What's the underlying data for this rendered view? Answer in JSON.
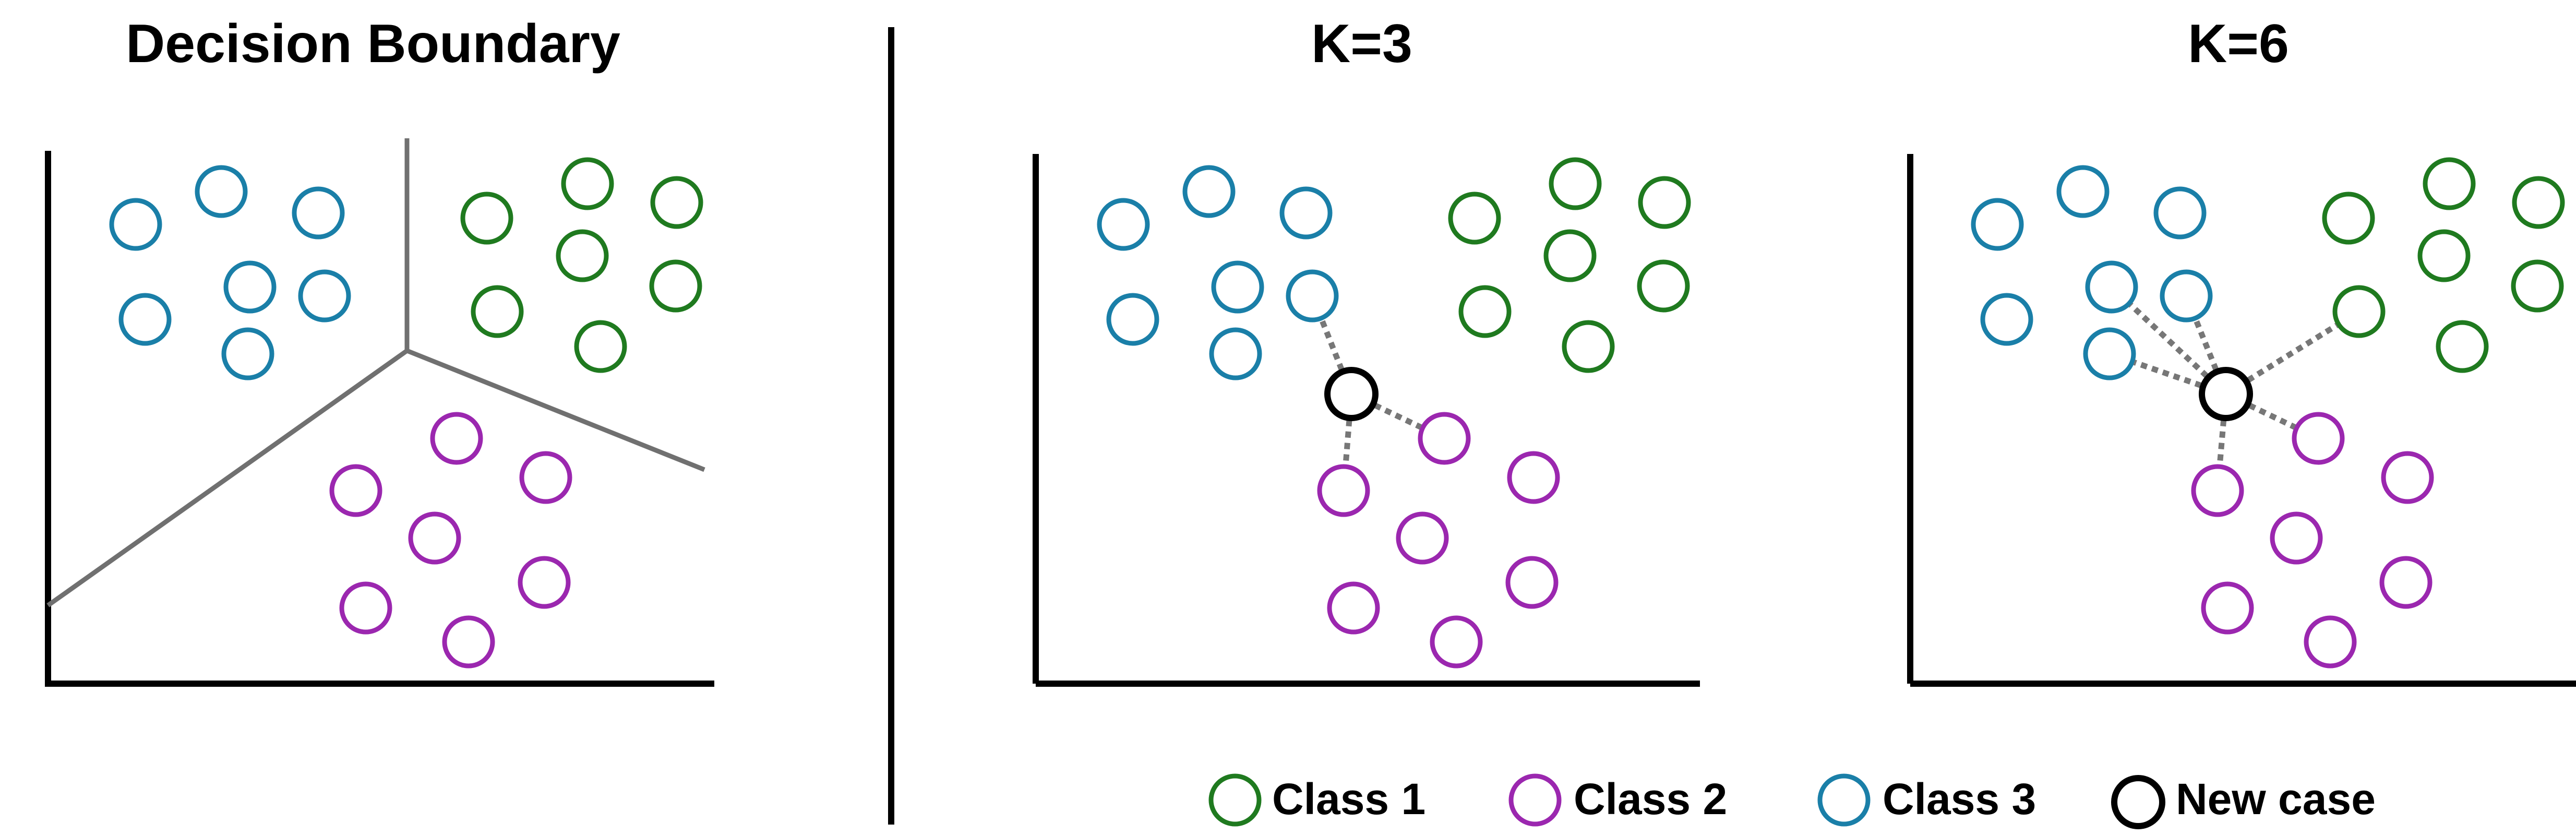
{
  "panels": {
    "decision_boundary": {
      "title": "Decision Boundary"
    },
    "k3": {
      "title": "K=3"
    },
    "k6": {
      "title": "K=6"
    }
  },
  "legend": {
    "class1": "Class 1",
    "class2": "Class 2",
    "class3": "Class 3",
    "new_case": "New case"
  },
  "colors": {
    "class1": "#1f7a1f",
    "class2": "#9b27af",
    "class3": "#1a7fa8",
    "new_case": "#000000",
    "boundary": "#707070",
    "connector": "#777777",
    "axis": "#000000"
  },
  "icons": {
    "point": "circle-outline",
    "legend_marker": "circle-outline"
  }
}
